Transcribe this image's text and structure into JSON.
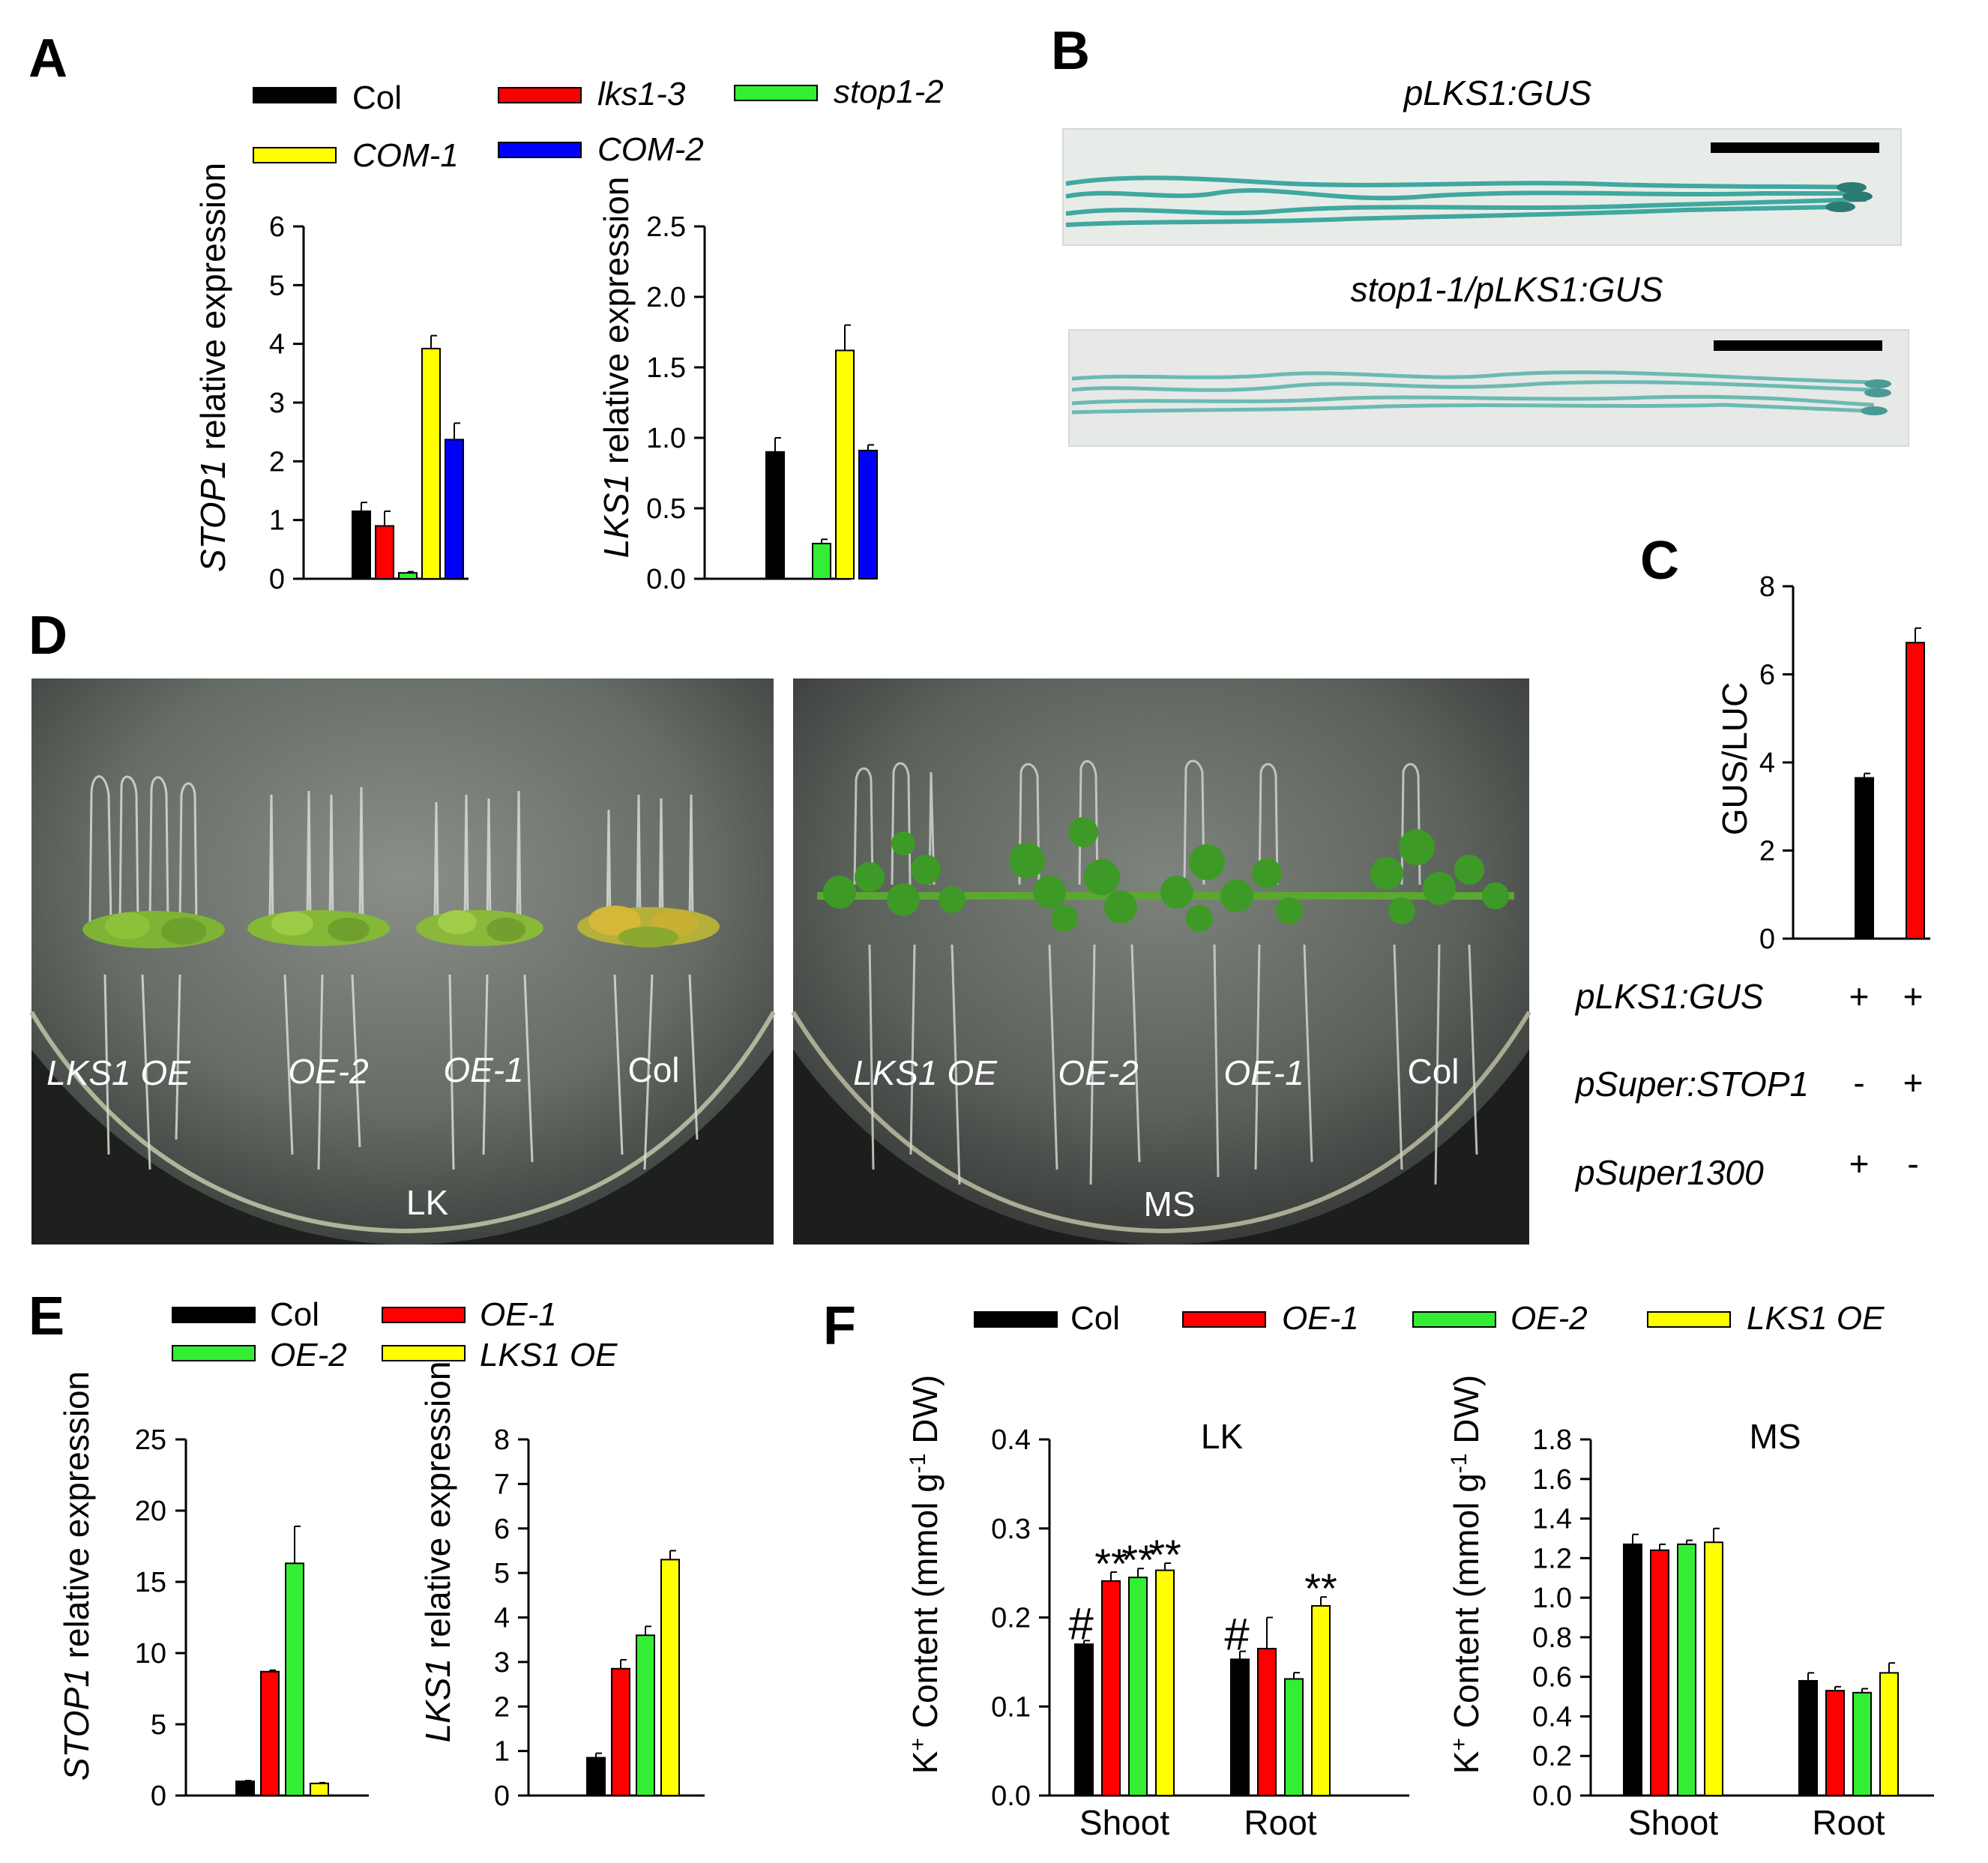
{
  "colors": {
    "black": "#000000",
    "red": "#ff0000",
    "green": "#33ee33",
    "yellow": "#ffff00",
    "blue": "#0000ff"
  },
  "panel_labels": [
    "A",
    "B",
    "C",
    "D",
    "E",
    "F"
  ],
  "panelB": {
    "title_top": "pLKS1:GUS",
    "title_bottom": "stop1-1/pLKS1:GUS"
  },
  "panelC_rows": [
    {
      "label": "pLKS1:GUS",
      "signs": [
        "+",
        "+"
      ]
    },
    {
      "label": "pSuper:STOP1",
      "signs": [
        "-",
        "+"
      ]
    },
    {
      "label": "pSuper1300",
      "signs": [
        "+",
        "-"
      ]
    }
  ],
  "panelD": {
    "plate_labels": [
      "LK",
      "MS"
    ],
    "left_lines": [
      "LKS1 OE",
      "OE-2",
      "OE-1",
      "Col"
    ],
    "right_lines": [
      "LKS1 OE",
      "OE-2",
      "OE-1",
      "Col"
    ]
  },
  "chart_data": [
    {
      "id": "A_STOP1",
      "type": "bar",
      "panel": "A",
      "ylabel_gene": "STOP1",
      "ylabel_rest": " relative expression",
      "ylim": [
        0,
        6
      ],
      "ticks": [
        "0",
        "1",
        "2",
        "3",
        "4",
        "5",
        "6"
      ],
      "legend": [
        {
          "name": "Col",
          "color": "#000000",
          "italic": false
        },
        {
          "name": "lks1-3",
          "color": "#ff0000",
          "italic": true
        },
        {
          "name": "stop1-2",
          "color": "#33ee33",
          "italic": true
        },
        {
          "name": "COM-1",
          "color": "#ffff00",
          "italic": true
        },
        {
          "name": "COM-2",
          "color": "#0000ff",
          "italic": true
        }
      ],
      "groups": [
        {
          "label": "",
          "bars": [
            {
              "series": "Col",
              "value": 1.15,
              "err": 0.15
            },
            {
              "series": "lks1-3",
              "value": 0.9,
              "err": 0.25
            },
            {
              "series": "stop1-2",
              "value": 0.1,
              "err": 0.02
            },
            {
              "series": "COM-1",
              "value": 3.92,
              "err": 0.22
            },
            {
              "series": "COM-2",
              "value": 2.37,
              "err": 0.28
            }
          ]
        }
      ]
    },
    {
      "id": "A_LKS1",
      "type": "bar",
      "panel": "A",
      "ylabel_gene": "LKS1",
      "ylabel_rest": " relative expression",
      "ylim": [
        0,
        2.5
      ],
      "ticks": [
        "0.0",
        "0.5",
        "1.0",
        "1.5",
        "2.0",
        "2.5"
      ],
      "groups": [
        {
          "label": "",
          "bars": [
            {
              "series": "Col",
              "value": 0.9,
              "err": 0.1
            },
            {
              "series": "lks1-3",
              "value": null,
              "err": null
            },
            {
              "series": "stop1-2",
              "value": 0.25,
              "err": 0.03
            },
            {
              "series": "COM-1",
              "value": 1.62,
              "err": 0.18
            },
            {
              "series": "COM-2",
              "value": 0.91,
              "err": 0.04
            }
          ]
        }
      ]
    },
    {
      "id": "C_GUSLUC",
      "type": "bar",
      "panel": "C",
      "ylabel": "GUS/LUC",
      "ylim": [
        0,
        8
      ],
      "ticks": [
        "0",
        "2",
        "4",
        "6",
        "8"
      ],
      "groups": [
        {
          "label": "",
          "bars": [
            {
              "series": "1",
              "value": 3.65,
              "err": 0.1
            },
            {
              "series": "2",
              "value": 6.72,
              "err": 0.33
            }
          ]
        }
      ]
    },
    {
      "id": "E_STOP1",
      "type": "bar",
      "panel": "E",
      "ylabel_gene": "STOP1",
      "ylabel_rest": " relative expression",
      "ylim": [
        0,
        25
      ],
      "ticks": [
        "0",
        "5",
        "10",
        "15",
        "20",
        "25"
      ],
      "legend": [
        {
          "name": "Col",
          "color": "#000000",
          "italic": false
        },
        {
          "name": "OE-1",
          "color": "#ff0000",
          "italic": true
        },
        {
          "name": "OE-2",
          "color": "#33ee33",
          "italic": true
        },
        {
          "name": "LKS1 OE",
          "color": "#ffff00",
          "italic": true
        }
      ],
      "groups": [
        {
          "label": "",
          "bars": [
            {
              "series": "Col",
              "value": 1.0,
              "err": 0.05
            },
            {
              "series": "OE-1",
              "value": 8.7,
              "err": 0.1
            },
            {
              "series": "OE-2",
              "value": 16.3,
              "err": 2.6
            },
            {
              "series": "LKS1 OE",
              "value": 0.85,
              "err": 0.05
            }
          ]
        }
      ]
    },
    {
      "id": "E_LKS1",
      "type": "bar",
      "panel": "E",
      "ylabel_gene": "LKS1",
      "ylabel_rest": " relative expression",
      "ylim": [
        0,
        8
      ],
      "ticks": [
        "0",
        "1",
        "2",
        "3",
        "4",
        "5",
        "6",
        "7",
        "8"
      ],
      "groups": [
        {
          "label": "",
          "bars": [
            {
              "series": "Col",
              "value": 0.85,
              "err": 0.1
            },
            {
              "series": "OE-1",
              "value": 2.85,
              "err": 0.2
            },
            {
              "series": "OE-2",
              "value": 3.6,
              "err": 0.2
            },
            {
              "series": "LKS1 OE",
              "value": 5.3,
              "err": 0.2
            }
          ]
        }
      ]
    },
    {
      "id": "F_LK",
      "type": "bar",
      "panel": "F",
      "title": "LK",
      "ylabel_main": "K",
      "ylabel_sup": "+",
      "ylabel_mid": " Content (mmol g",
      "ylabel_sup2": "-1",
      "ylabel_end": " DW)",
      "ylim": [
        0,
        0.4
      ],
      "ticks": [
        "0.0",
        "0.1",
        "0.2",
        "0.3",
        "0.4"
      ],
      "legend": [
        {
          "name": "Col",
          "color": "#000000",
          "italic": false
        },
        {
          "name": "OE-1",
          "color": "#ff0000",
          "italic": true
        },
        {
          "name": "OE-2",
          "color": "#33ee33",
          "italic": true
        },
        {
          "name": "LKS1 OE",
          "color": "#ffff00",
          "italic": true
        }
      ],
      "groups": [
        {
          "label": "Shoot",
          "bars": [
            {
              "series": "Col",
              "value": 0.17,
              "err": 0.004,
              "mark": "#"
            },
            {
              "series": "OE-1",
              "value": 0.241,
              "err": 0.01,
              "mark": "**"
            },
            {
              "series": "OE-2",
              "value": 0.245,
              "err": 0.01,
              "mark": "**"
            },
            {
              "series": "LKS1 OE",
              "value": 0.253,
              "err": 0.008,
              "mark": "**"
            }
          ]
        },
        {
          "label": "Root",
          "bars": [
            {
              "series": "Col",
              "value": 0.153,
              "err": 0.009,
              "mark": "#"
            },
            {
              "series": "OE-1",
              "value": 0.165,
              "err": 0.035,
              "mark": ""
            },
            {
              "series": "OE-2",
              "value": 0.131,
              "err": 0.007,
              "mark": ""
            },
            {
              "series": "LKS1 OE",
              "value": 0.213,
              "err": 0.01,
              "mark": "**"
            }
          ]
        }
      ]
    },
    {
      "id": "F_MS",
      "type": "bar",
      "panel": "F",
      "title": "MS",
      "ylabel_main": "K",
      "ylabel_sup": "+",
      "ylabel_mid": " Content (mmol g",
      "ylabel_sup2": "-1",
      "ylabel_end": " DW)",
      "ylim": [
        0,
        1.8
      ],
      "ticks": [
        "0.0",
        "0.2",
        "0.4",
        "0.6",
        "0.8",
        "1.0",
        "1.2",
        "1.4",
        "1.6",
        "1.8"
      ],
      "groups": [
        {
          "label": "Shoot",
          "bars": [
            {
              "series": "Col",
              "value": 1.27,
              "err": 0.05
            },
            {
              "series": "OE-1",
              "value": 1.24,
              "err": 0.03
            },
            {
              "series": "OE-2",
              "value": 1.27,
              "err": 0.02
            },
            {
              "series": "LKS1 OE",
              "value": 1.28,
              "err": 0.07
            }
          ]
        },
        {
          "label": "Root",
          "bars": [
            {
              "series": "Col",
              "value": 0.58,
              "err": 0.04
            },
            {
              "series": "OE-1",
              "value": 0.53,
              "err": 0.02
            },
            {
              "series": "OE-2",
              "value": 0.52,
              "err": 0.02
            },
            {
              "series": "LKS1 OE",
              "value": 0.62,
              "err": 0.05
            }
          ]
        }
      ]
    }
  ]
}
